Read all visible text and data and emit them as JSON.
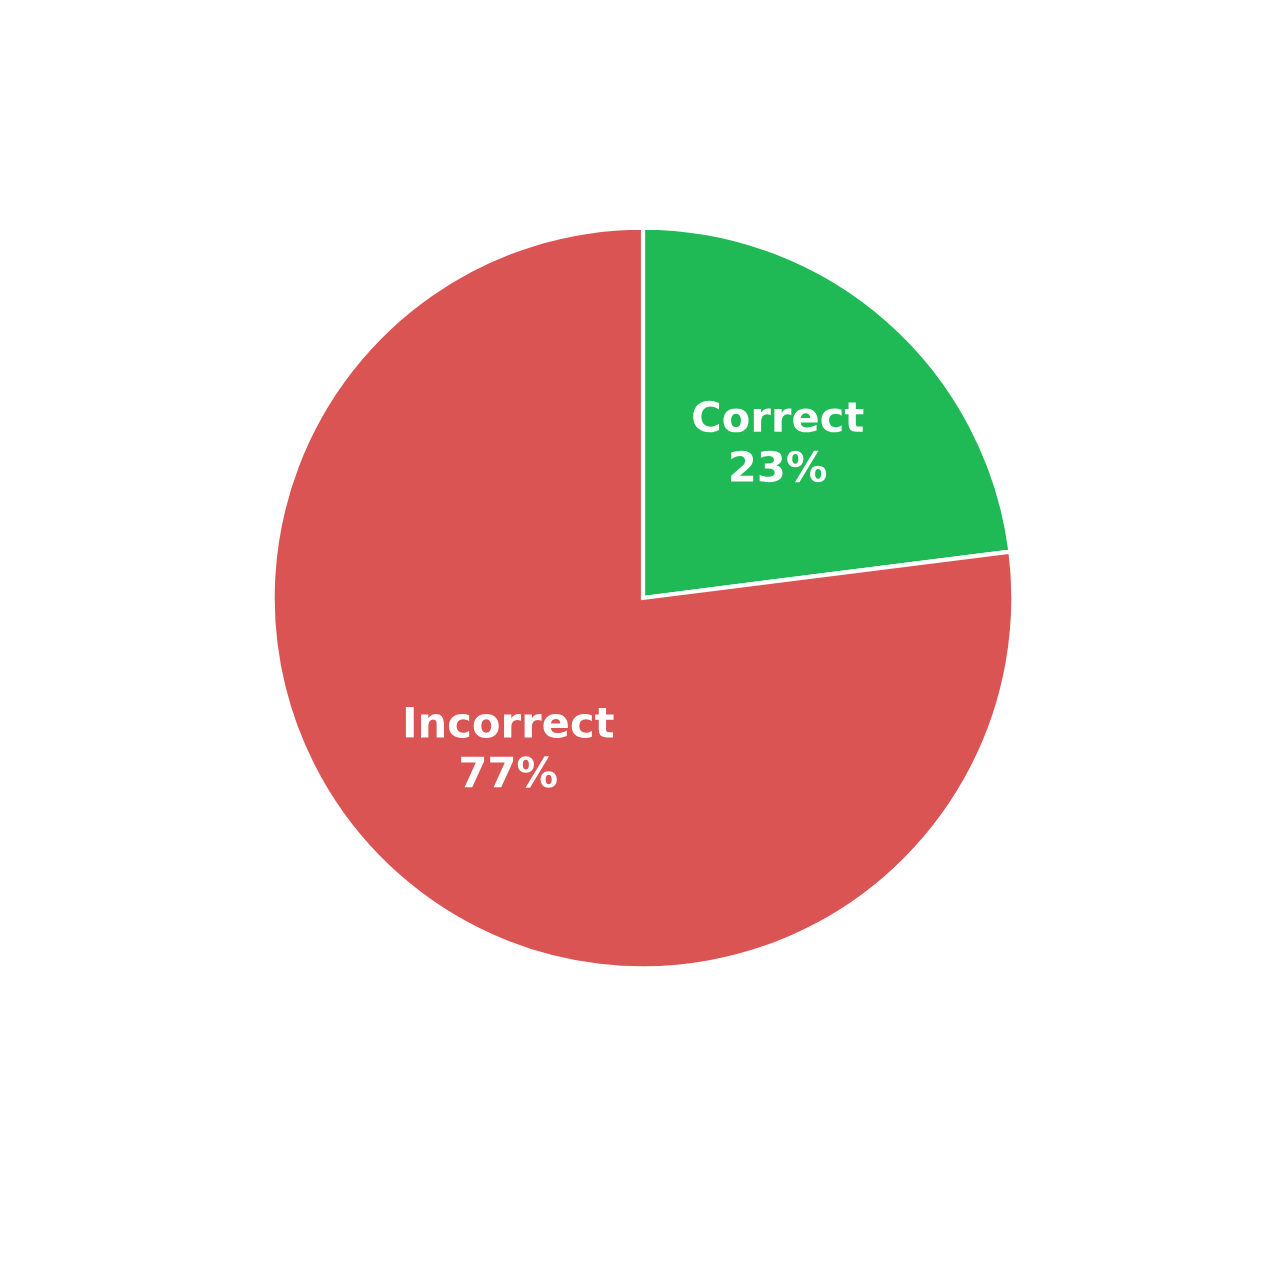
{
  "chart_data": {
    "type": "pie",
    "categories": [
      "Correct",
      "Incorrect"
    ],
    "values": [
      23,
      77
    ],
    "colors": [
      "#1fba55",
      "#db5454"
    ],
    "value_labels": [
      "23%",
      "77%"
    ],
    "legend": false
  }
}
